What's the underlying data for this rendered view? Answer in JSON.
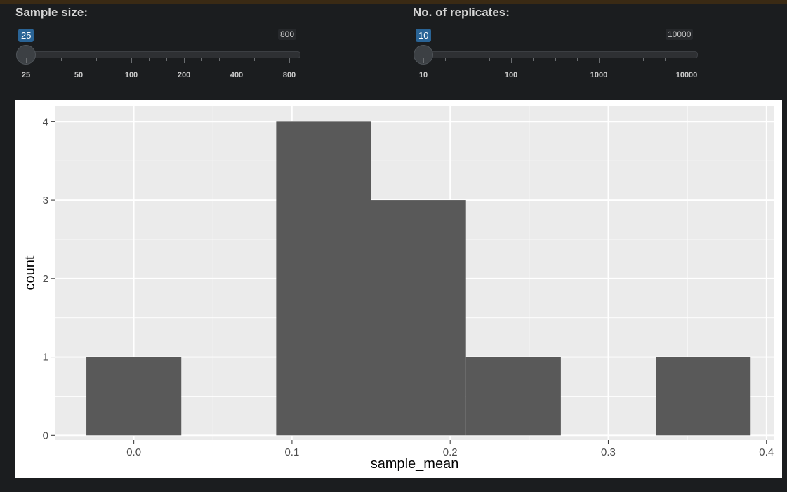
{
  "sliders": [
    {
      "label": "Sample size:",
      "value": "25",
      "max_label": "800",
      "ticks": [
        "25",
        "50",
        "100",
        "200",
        "400",
        "800"
      ]
    },
    {
      "label": "No. of replicates:",
      "value": "10",
      "max_label": "10000",
      "ticks": [
        "10",
        "100",
        "1000",
        "10000"
      ]
    }
  ],
  "chart_data": {
    "type": "bar",
    "xlabel": "sample_mean",
    "ylabel": "count",
    "bins": [
      {
        "x0": -0.03,
        "x1": 0.03,
        "count": 1
      },
      {
        "x0": 0.03,
        "x1": 0.09,
        "count": 0
      },
      {
        "x0": 0.09,
        "x1": 0.15,
        "count": 4
      },
      {
        "x0": 0.15,
        "x1": 0.21,
        "count": 3
      },
      {
        "x0": 0.21,
        "x1": 0.27,
        "count": 1
      },
      {
        "x0": 0.27,
        "x1": 0.33,
        "count": 0
      },
      {
        "x0": 0.33,
        "x1": 0.39,
        "count": 1
      }
    ],
    "x_ticks": [
      "0.0",
      "0.1",
      "0.2",
      "0.3",
      "0.4"
    ],
    "y_ticks": [
      "0",
      "1",
      "2",
      "3",
      "4"
    ],
    "xlim": [
      -0.05,
      0.405
    ],
    "ylim": [
      -0.06,
      4.2
    ],
    "grid": true,
    "colors": {
      "bar": "#595959",
      "panel": "#ebebeb",
      "gridline": "#ffffff"
    }
  }
}
